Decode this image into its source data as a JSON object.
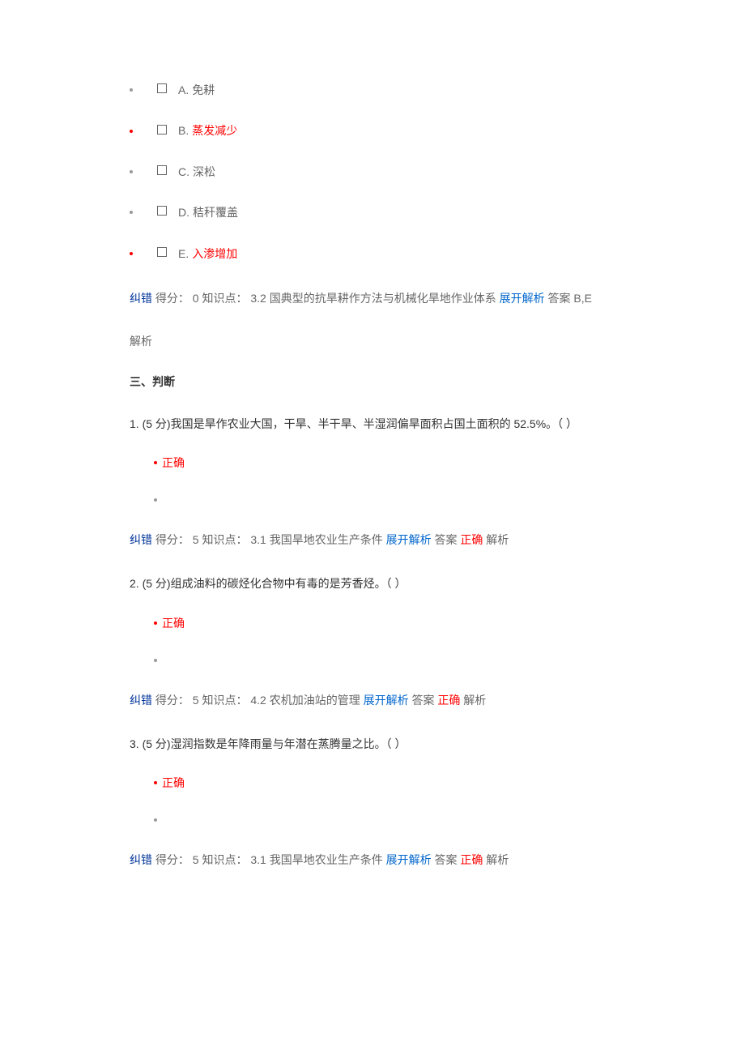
{
  "mc_options": [
    {
      "letter": "A.",
      "text": "免耕",
      "highlighted": false
    },
    {
      "letter": "B.",
      "text": "蒸发减少",
      "highlighted": true
    },
    {
      "letter": "C.",
      "text": "深松",
      "highlighted": false
    },
    {
      "letter": "D.",
      "text": "秸秆覆盖",
      "highlighted": false
    },
    {
      "letter": "E.",
      "text": "入渗增加",
      "highlighted": true
    }
  ],
  "mc_feedback": {
    "correct_label": "纠错",
    "score_label": "得分：",
    "score_value": "0",
    "kp_label": "知识点：",
    "kp_value": "3.2 国典型的抗旱耕作方法与机械化旱地作业体系",
    "expand_label": "展开解析",
    "answer_label": "答案",
    "answer_value": "B,E"
  },
  "analysis_label": "解析",
  "section_heading": "三、判断",
  "tf_questions": [
    {
      "num": "1.",
      "points": "(5 分)",
      "text": "我国是旱作农业大国，干旱、半干旱、半湿润偏旱面积占国土面积的 52.5%。（ ）",
      "selected": "正确",
      "feedback": {
        "correct_label": "纠错",
        "score_label": "得分：",
        "score_value": "5",
        "kp_label": "知识点：",
        "kp_value": "3.1 我国旱地农业生产条件",
        "expand_label": "展开解析",
        "answer_label": "答案",
        "answer_value": "正确",
        "analysis_label": "解析"
      }
    },
    {
      "num": "2.",
      "points": "(5 分)",
      "text": "组成油料的碳烃化合物中有毒的是芳香烃。（ ）",
      "selected": "正确",
      "feedback": {
        "correct_label": "纠错",
        "score_label": "得分：",
        "score_value": "5",
        "kp_label": "知识点：",
        "kp_value": "4.2 农机加油站的管理",
        "expand_label": "展开解析",
        "answer_label": "答案",
        "answer_value": "正确",
        "analysis_label": "解析"
      }
    },
    {
      "num": "3.",
      "points": "(5 分)",
      "text": "湿润指数是年降雨量与年潜在蒸腾量之比。（ ）",
      "selected": "正确",
      "feedback": {
        "correct_label": "纠错",
        "score_label": "得分：",
        "score_value": "5",
        "kp_label": "知识点：",
        "kp_value": "3.1 我国旱地农业生产条件",
        "expand_label": "展开解析",
        "answer_label": "答案",
        "answer_value": "正确",
        "analysis_label": "解析"
      }
    }
  ]
}
